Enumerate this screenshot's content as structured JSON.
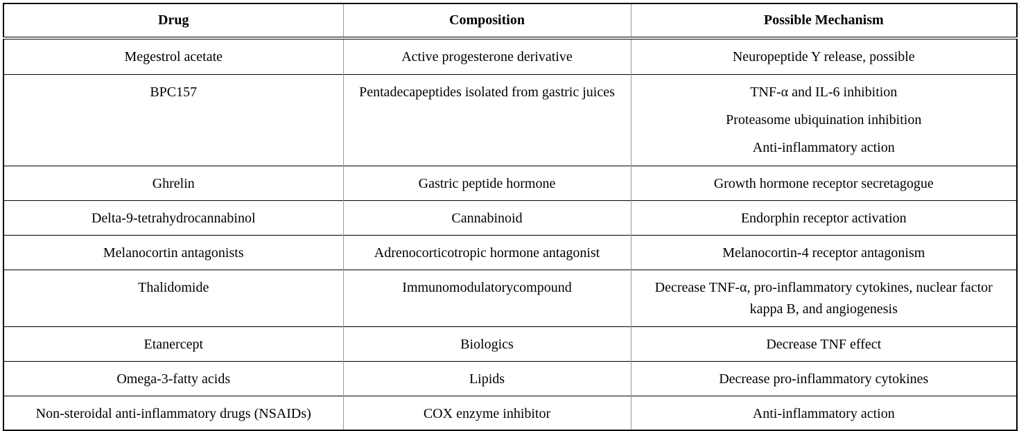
{
  "table": {
    "headers": [
      "Drug",
      "Composition",
      "Possible Mechanism"
    ],
    "rows": [
      {
        "drug": "Megestrol acetate",
        "composition": "Active progesterone derivative",
        "mechanism": [
          "Neuropeptide Y release, possible"
        ]
      },
      {
        "drug": "BPC157",
        "composition": "Pentadecapeptides isolated from gastric juices",
        "mechanism": [
          "TNF-α and IL-6 inhibition",
          "Proteasome ubiquination inhibition",
          "Anti-inflammatory action"
        ]
      },
      {
        "drug": "Ghrelin",
        "composition": "Gastric peptide hormone",
        "mechanism": [
          "Growth hormone receptor secretagogue"
        ]
      },
      {
        "drug": "Delta-9-tetrahydrocannabinol",
        "composition": "Cannabinoid",
        "mechanism": [
          "Endorphin receptor activation"
        ]
      },
      {
        "drug": "Melanocortin antagonists",
        "composition": "Adrenocorticotropic hormone antagonist",
        "mechanism": [
          "Melanocortin-4 receptor antagonism"
        ]
      },
      {
        "drug": "Thalidomide",
        "composition": "Immunomodulatorycompound",
        "mechanism": [
          "Decrease TNF-α, pro-inflammatory cytokines, nuclear factor kappa B, and angiogenesis"
        ]
      },
      {
        "drug": "Etanercept",
        "composition": "Biologics",
        "mechanism": [
          "Decrease TNF effect"
        ]
      },
      {
        "drug": "Omega-3-fatty acids",
        "composition": "Lipids",
        "mechanism": [
          "Decrease pro-inflammatory cytokines"
        ]
      },
      {
        "drug": "Non-steroidal anti-inflammatory drugs (NSAIDs)",
        "composition": "COX enzyme inhibitor",
        "mechanism": [
          "Anti-inflammatory action"
        ]
      }
    ]
  }
}
